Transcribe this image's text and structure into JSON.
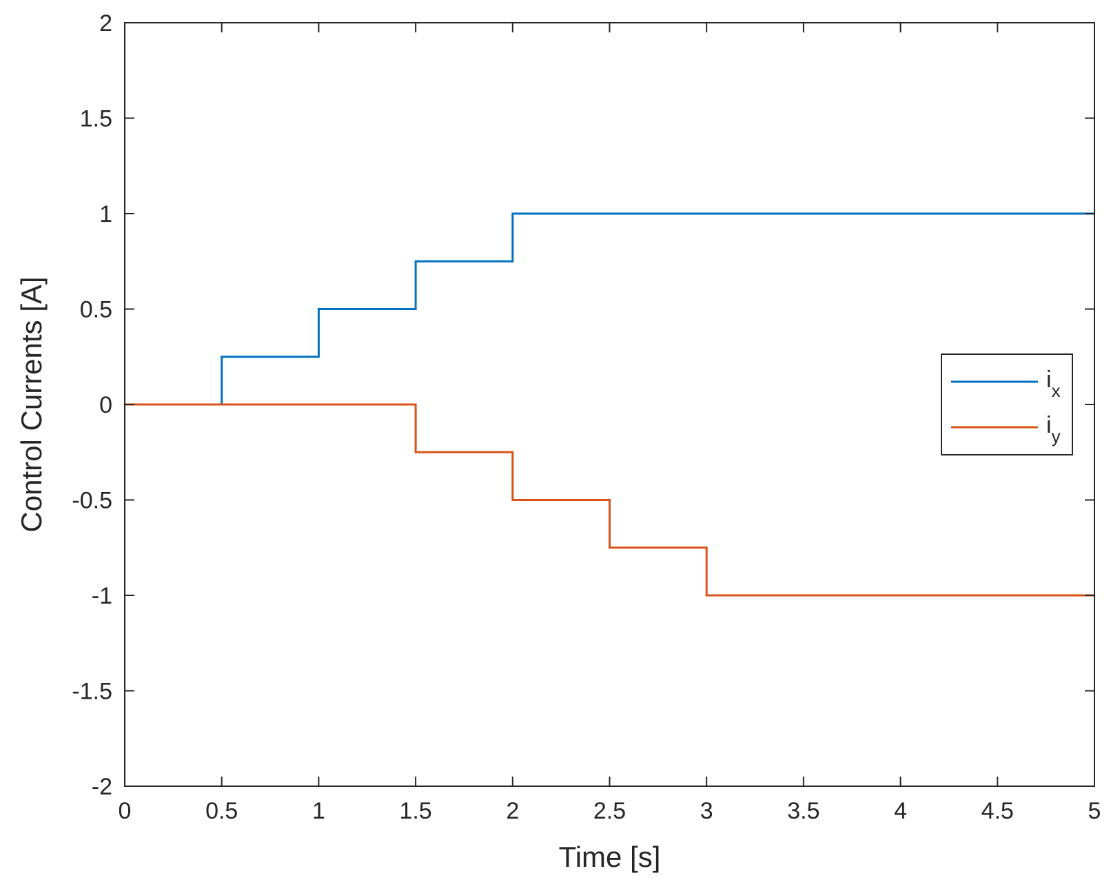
{
  "chart_data": {
    "type": "line",
    "line_style": "step",
    "xlabel": "Time [s]",
    "ylabel": "Control Currents [A]",
    "xlim": [
      0,
      5
    ],
    "ylim": [
      -2,
      2
    ],
    "xticks": [
      0,
      0.5,
      1,
      1.5,
      2,
      2.5,
      3,
      3.5,
      4,
      4.5,
      5
    ],
    "yticks": [
      -2,
      -1.5,
      -1,
      -0.5,
      0,
      0.5,
      1,
      1.5,
      2
    ],
    "grid": false,
    "box": true,
    "legend_position": "right",
    "series": [
      {
        "name": "ix",
        "label_base": "i",
        "label_sub": "x",
        "color": "#0072BD",
        "x": [
          0,
          0.5,
          1,
          1.5,
          2,
          5
        ],
        "y": [
          0,
          0.25,
          0.5,
          0.75,
          1,
          1
        ]
      },
      {
        "name": "iy",
        "label_base": "i",
        "label_sub": "y",
        "color": "#D95319",
        "x": [
          0,
          1.5,
          2,
          2.5,
          3,
          5
        ],
        "y": [
          0,
          -0.25,
          -0.5,
          -0.75,
          -1,
          -1
        ]
      }
    ]
  }
}
